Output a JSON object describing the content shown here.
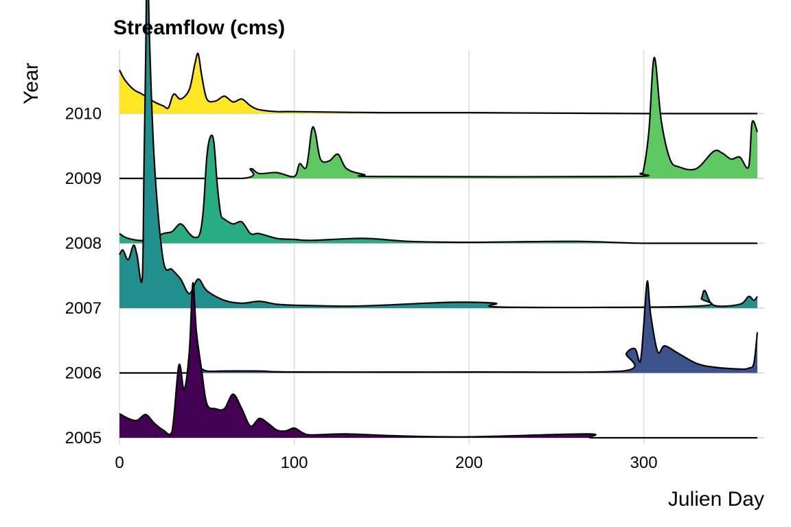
{
  "chart_data": {
    "type": "area",
    "subtype": "ridgeline",
    "title": "Streamflow (cms)",
    "xlabel": "Julien Day",
    "ylabel": "Year",
    "xlim": [
      0,
      365
    ],
    "x_ticks": [
      0,
      100,
      200,
      300
    ],
    "grid": true,
    "legend": "none",
    "categories": [
      "2005",
      "2006",
      "2007",
      "2008",
      "2009",
      "2010"
    ],
    "series": [
      {
        "name": "2005",
        "color": "#440154",
        "x": [
          0,
          5,
          10,
          15,
          20,
          25,
          30,
          34,
          37,
          40,
          42,
          44,
          47,
          50,
          55,
          60,
          65,
          70,
          75,
          80,
          85,
          90,
          95,
          100,
          105,
          110,
          130,
          160,
          200,
          268,
          270,
          300,
          365
        ],
        "values": [
          0.25,
          0.2,
          0.18,
          0.24,
          0.15,
          0.08,
          0.06,
          0.75,
          0.5,
          0.9,
          1.6,
          1.1,
          0.7,
          0.35,
          0.3,
          0.3,
          0.45,
          0.3,
          0.12,
          0.2,
          0.15,
          0.08,
          0.07,
          0.1,
          0.05,
          0.03,
          0.04,
          0.02,
          0.01,
          0.04,
          0.0,
          0.0,
          0.0
        ]
      },
      {
        "name": "2006",
        "color": "#3b528b",
        "x": [
          0,
          40,
          42,
          45,
          50,
          60,
          80,
          100,
          200,
          288,
          290,
          295,
          298,
          300,
          302,
          304,
          308,
          312,
          320,
          330,
          340,
          355,
          360,
          363,
          365
        ],
        "values": [
          0.0,
          0.0,
          0.04,
          0.06,
          0.02,
          0.02,
          0.02,
          0.01,
          0.01,
          0.02,
          0.2,
          0.25,
          0.12,
          0.5,
          0.95,
          0.6,
          0.22,
          0.28,
          0.2,
          0.1,
          0.06,
          0.04,
          0.05,
          0.1,
          0.42
        ]
      },
      {
        "name": "2007",
        "color": "#21908c",
        "x": [
          0,
          2,
          5,
          8,
          10,
          13,
          14,
          15,
          16,
          17,
          20,
          25,
          30,
          35,
          40,
          45,
          50,
          60,
          70,
          80,
          90,
          100,
          130,
          150,
          190,
          215,
          220,
          330,
          333,
          335,
          340,
          355,
          360,
          363,
          365
        ],
        "values": [
          0.55,
          0.6,
          0.5,
          0.65,
          0.55,
          0.3,
          1.4,
          2.6,
          4.0,
          2.9,
          1.5,
          0.5,
          0.4,
          0.3,
          0.15,
          0.3,
          0.18,
          0.08,
          0.05,
          0.07,
          0.04,
          0.03,
          0.02,
          0.03,
          0.06,
          0.05,
          0.01,
          0.02,
          0.1,
          0.18,
          0.03,
          0.04,
          0.12,
          0.08,
          0.12
        ]
      },
      {
        "name": "2008",
        "color": "#27ad81",
        "x": [
          0,
          5,
          15,
          25,
          30,
          35,
          40,
          43,
          46,
          48,
          50,
          52,
          54,
          56,
          58,
          60,
          65,
          70,
          75,
          80,
          90,
          100,
          110,
          140,
          165,
          200,
          260,
          300,
          365
        ],
        "values": [
          0.1,
          0.05,
          0.03,
          0.1,
          0.12,
          0.2,
          0.1,
          0.06,
          0.1,
          0.35,
          0.9,
          1.1,
          1.05,
          0.6,
          0.3,
          0.25,
          0.2,
          0.22,
          0.1,
          0.1,
          0.05,
          0.04,
          0.03,
          0.05,
          0.02,
          0.01,
          0.02,
          0.0,
          0.0
        ]
      },
      {
        "name": "2009",
        "color": "#5ec962",
        "x": [
          0,
          70,
          75,
          80,
          90,
          100,
          103,
          107,
          110,
          112,
          115,
          120,
          125,
          130,
          140,
          150,
          290,
          298,
          300,
          303,
          306,
          310,
          315,
          320,
          330,
          340,
          345,
          350,
          355,
          360,
          362,
          365
        ],
        "values": [
          0.0,
          0.0,
          0.1,
          0.05,
          0.06,
          0.02,
          0.15,
          0.12,
          0.5,
          0.48,
          0.2,
          0.18,
          0.25,
          0.1,
          0.04,
          0.02,
          0.02,
          0.05,
          0.1,
          0.5,
          1.25,
          0.6,
          0.2,
          0.12,
          0.1,
          0.28,
          0.26,
          0.2,
          0.22,
          0.12,
          0.58,
          0.48
        ]
      },
      {
        "name": "2010",
        "color": "#fde725",
        "x": [
          0,
          3,
          8,
          13,
          20,
          25,
          28,
          31,
          35,
          40,
          43,
          45,
          47,
          50,
          55,
          60,
          65,
          70,
          75,
          80,
          90,
          100,
          150,
          200,
          300,
          365
        ],
        "values": [
          0.45,
          0.35,
          0.25,
          0.2,
          0.12,
          0.08,
          0.06,
          0.2,
          0.15,
          0.25,
          0.5,
          0.62,
          0.4,
          0.15,
          0.13,
          0.18,
          0.12,
          0.15,
          0.08,
          0.04,
          0.02,
          0.02,
          0.01,
          0.01,
          0.0,
          0.0
        ]
      }
    ]
  }
}
